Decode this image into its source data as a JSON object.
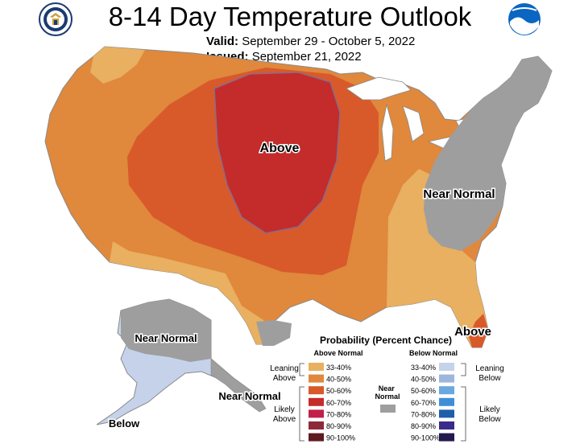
{
  "header": {
    "title": "8-14 Day Temperature Outlook",
    "valid_label": "Valid:",
    "valid_value": "September 29 - October 5, 2022",
    "issued_label": "Issued:",
    "issued_value": "September 21, 2022"
  },
  "map_labels": {
    "above_center": "Above",
    "near_normal_east": "Near Normal",
    "above_florida": "Above",
    "near_normal_alaska": "Near Normal",
    "near_normal_aleutian": "Near Normal",
    "below_alaska": "Below"
  },
  "legend": {
    "title": "Probability (Percent Chance)",
    "above_header": "Above Normal",
    "below_header": "Below Normal",
    "near_header": "Near Normal",
    "leaning_above": "Leaning Above",
    "likely_above": "Likely Above",
    "leaning_below": "Leaning Below",
    "likely_below": "Likely Below",
    "above_bins": [
      {
        "label": "33-40%",
        "color": "#e8b060"
      },
      {
        "label": "40-50%",
        "color": "#e0883c"
      },
      {
        "label": "50-60%",
        "color": "#d85a2a"
      },
      {
        "label": "60-70%",
        "color": "#c42b2b"
      },
      {
        "label": "70-80%",
        "color": "#c21f4a"
      },
      {
        "label": "80-90%",
        "color": "#8c2a3a"
      },
      {
        "label": "90-100%",
        "color": "#5e1b22"
      }
    ],
    "below_bins": [
      {
        "label": "33-40%",
        "color": "#c5d2ea"
      },
      {
        "label": "40-50%",
        "color": "#9db7dc"
      },
      {
        "label": "50-60%",
        "color": "#6aa8e0"
      },
      {
        "label": "60-70%",
        "color": "#3f8fd8"
      },
      {
        "label": "70-80%",
        "color": "#1d5fa8"
      },
      {
        "label": "80-90%",
        "color": "#3a2a8a"
      },
      {
        "label": "90-100%",
        "color": "#24184e"
      }
    ],
    "near_color": "#9e9e9e"
  }
}
